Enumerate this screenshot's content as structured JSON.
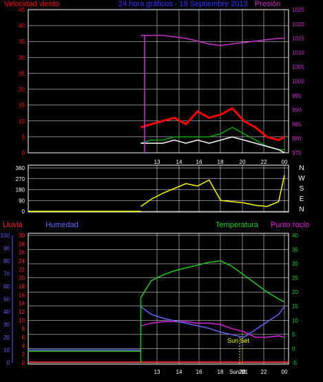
{
  "title": "24 hora gráficos - 19 Septiembre 2013",
  "colors": {
    "wind": "#ff0000",
    "gust": "#ffffff",
    "avg": "#00aa00",
    "pressure": "#cc33cc",
    "direction": "#ffff00",
    "rain": "#ff2222",
    "humidity": "#6666ff",
    "temperature": "#22cc22",
    "dewpoint": "#dd22dd",
    "grid": "#ffffff",
    "sunset": "#ffff00",
    "title": "#3333ff"
  },
  "x_ticks": [
    "13",
    "14",
    "16",
    "18",
    "20",
    "22",
    "00"
  ],
  "sunset_label": "Sun Set",
  "sun_marker_labels": [
    "Sun",
    "20",
    "21"
  ],
  "chart_data": [
    {
      "type": "line",
      "id": "wind",
      "title": "",
      "left_axis_label": "Velocidad viento",
      "right_axis_label": "Presión",
      "yticks_left": [
        0,
        5,
        10,
        15,
        20,
        25,
        30,
        35,
        40,
        45
      ],
      "yticks_right": [
        975,
        980,
        985,
        990,
        995,
        1000,
        1005,
        1010,
        1015,
        1020,
        1025
      ],
      "ylim_left": [
        0,
        45
      ],
      "ylim_right": [
        975,
        1025
      ],
      "x_hours": [
        11.6,
        12.5,
        13.5,
        14.5,
        15.5,
        16.5,
        17.5,
        18.5,
        19.5,
        20.5,
        21.5,
        22.5,
        23.5,
        24
      ],
      "series": [
        {
          "key": "wind",
          "values": [
            8,
            9,
            10,
            11,
            9,
            13,
            11,
            12,
            14,
            10,
            8,
            5,
            4,
            5
          ]
        },
        {
          "key": "avg",
          "values": [
            3,
            4,
            4,
            5,
            5,
            5,
            5,
            6,
            8,
            6,
            4,
            2,
            1,
            1
          ]
        },
        {
          "key": "gust",
          "values": [
            3,
            3,
            3,
            4,
            3,
            4,
            3,
            4,
            5,
            4,
            3,
            2,
            1,
            0
          ]
        },
        {
          "key": "pressure",
          "axis": "right",
          "values": [
            1016,
            1016,
            1016,
            1015.5,
            1015,
            1014,
            1013,
            1012.5,
            1013,
            1013.5,
            1014,
            1014.5,
            1015,
            1015
          ]
        }
      ]
    },
    {
      "type": "scatter",
      "id": "direction",
      "yticks": [
        0,
        90,
        180,
        270,
        360
      ],
      "ylim": [
        0,
        360
      ],
      "compass_labels": [
        "N",
        "W",
        "S",
        "E",
        "N"
      ],
      "x_hours": [
        11.6,
        12.5,
        13.5,
        14.5,
        15.5,
        16.5,
        17.5,
        18.5,
        19.5,
        20.5,
        21.5,
        22.5,
        23.5,
        24
      ],
      "values": [
        40,
        100,
        150,
        190,
        230,
        210,
        260,
        90,
        80,
        70,
        50,
        40,
        80,
        300
      ]
    },
    {
      "type": "line",
      "id": "temp",
      "labels": {
        "rain": "Lluvia",
        "humidity": "Humedad",
        "temperature": "Temperatura",
        "dewpoint": "Punto rocío"
      },
      "yticks_left_far": [
        0,
        10,
        20,
        30,
        40,
        50,
        60,
        70,
        80,
        90,
        100
      ],
      "yticks_left_near": [
        0,
        2,
        4,
        6,
        8,
        10,
        12,
        14,
        16,
        18,
        20,
        22,
        24,
        26,
        28,
        30
      ],
      "yticks_right": [
        -5,
        0,
        5,
        10,
        15,
        20,
        25,
        30,
        35,
        40
      ],
      "ylim_right": [
        -5,
        40
      ],
      "ylim_humidity": [
        0,
        100
      ],
      "x_hours": [
        11.6,
        12.5,
        13.5,
        14.5,
        15.5,
        16.5,
        17.5,
        18.5,
        19.5,
        20.5,
        21.5,
        22.5,
        23.5,
        24
      ],
      "series": [
        {
          "key": "temperature",
          "values": [
            18,
            24,
            26,
            27.5,
            28.5,
            29.5,
            30.5,
            31,
            29,
            26,
            23,
            20,
            17.5,
            16.5
          ]
        },
        {
          "key": "dewpoint",
          "values": [
            8,
            9,
            9.5,
            9.5,
            9.5,
            9,
            9,
            8.5,
            7,
            6,
            4,
            4,
            4.5,
            4
          ]
        },
        {
          "key": "humidity",
          "values": [
            44,
            38,
            35,
            33,
            31,
            29,
            27,
            24,
            22,
            20,
            26,
            32,
            38,
            44
          ]
        },
        {
          "key": "rain",
          "values": [
            0,
            0,
            0,
            0,
            0,
            0,
            0,
            0,
            0,
            0,
            0,
            0,
            0,
            0
          ]
        }
      ]
    }
  ]
}
